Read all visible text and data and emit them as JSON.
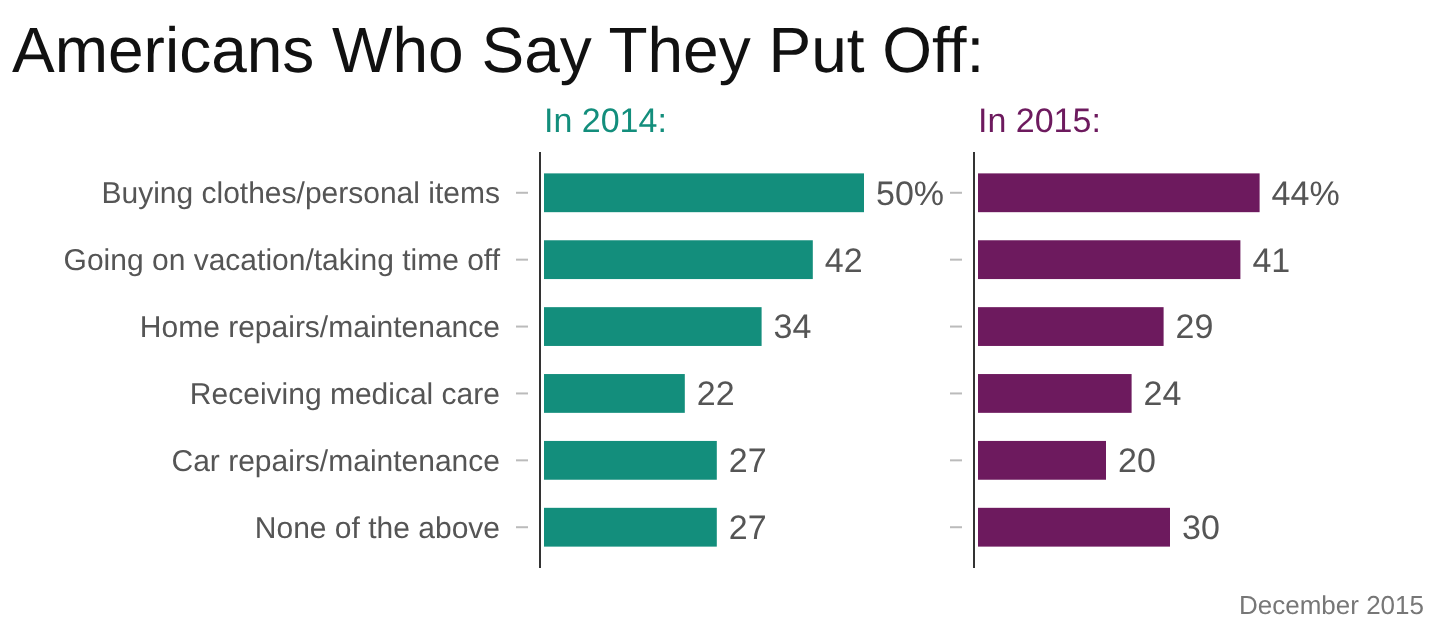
{
  "chart_data": [
    {
      "type": "bar",
      "orientation": "horizontal",
      "title": "Americans Who Say They Put Off:",
      "subtitle": "In 2014:",
      "categories": [
        "Buying clothes/personal items",
        "Going on vacation/taking time off",
        "Home repairs/maintenance",
        "Receiving medical care",
        "Car repairs/maintenance",
        "None of the above"
      ],
      "values": [
        50,
        42,
        34,
        22,
        27,
        27
      ],
      "color": "#138e7c",
      "value_labels": [
        "50%",
        "42",
        "34",
        "22",
        "27",
        "27"
      ],
      "tick_labels": "y"
    },
    {
      "type": "bar",
      "orientation": "horizontal",
      "subtitle": "In 2015:",
      "categories": [
        null,
        null,
        null,
        null,
        null,
        null
      ],
      "values": [
        44,
        41,
        29,
        24,
        20,
        30
      ],
      "color": "#6d1a5e",
      "value_labels": [
        "44%",
        "41",
        "29",
        "24",
        "20",
        "30"
      ],
      "tick_labels": false,
      "annotations": [
        "December 2015"
      ]
    }
  ]
}
